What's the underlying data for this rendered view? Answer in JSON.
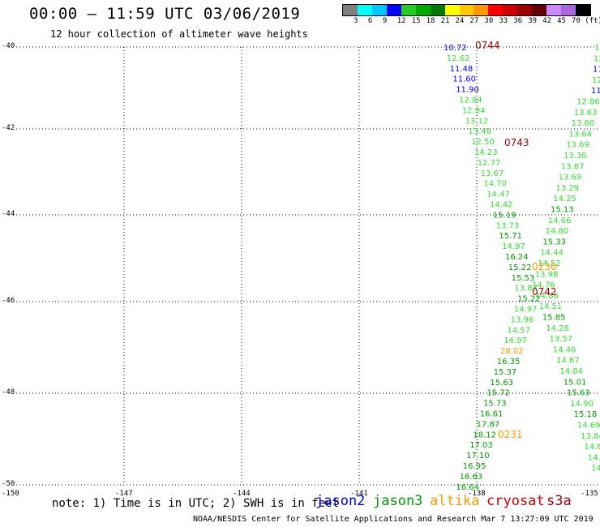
{
  "title": "00:00 – 11:59 UTC 03/06/2019",
  "subtitle": "12 hour collection of altimeter wave heights",
  "colorbar": {
    "colors": [
      "#808080",
      "#00ffff",
      "#00c8ff",
      "#0000ff",
      "#22cc22",
      "#00aa00",
      "#007700",
      "#ffff00",
      "#ffc800",
      "#ff9900",
      "#ff0000",
      "#cc0000",
      "#990000",
      "#660000",
      "#cc88ff",
      "#aa66dd",
      "#000000"
    ],
    "labels": [
      "3",
      "6",
      "9",
      "12",
      "15",
      "18",
      "21",
      "24",
      "27",
      "30",
      "33",
      "36",
      "39",
      "42",
      "45",
      "70 (ft)"
    ]
  },
  "axes": {
    "lat_labels": [
      "-40",
      "-42",
      "-44",
      "-46",
      "-48",
      "-50"
    ],
    "lon_labels": [
      "-150",
      "-147",
      "-144",
      "-141",
      "-138",
      "-135"
    ]
  },
  "annotations": [
    {
      "text": "0744",
      "color": "#990000"
    },
    {
      "text": "0743",
      "color": "#990000"
    },
    {
      "text": "0230",
      "color": "#ff9900"
    },
    {
      "text": "0742",
      "color": "#990000"
    },
    {
      "text": "0231",
      "color": "#ff9900"
    }
  ],
  "track_left": [
    {
      "v": "10.72",
      "c": "#0000ff"
    },
    {
      "v": "12.62",
      "c": "#33dd33"
    },
    {
      "v": "11.48",
      "c": "#0000ff"
    },
    {
      "v": "11.60",
      "c": "#0000ff"
    },
    {
      "v": "11.90",
      "c": "#0000ff"
    },
    {
      "v": "12.84",
      "c": "#33dd33"
    },
    {
      "v": "12.94",
      "c": "#33dd33"
    },
    {
      "v": "13.12",
      "c": "#33dd33"
    },
    {
      "v": "13.48",
      "c": "#33dd33"
    },
    {
      "v": "12.50",
      "c": "#33dd33"
    },
    {
      "v": "14.23",
      "c": "#33dd33"
    },
    {
      "v": "12.77",
      "c": "#33dd33"
    },
    {
      "v": "13.67",
      "c": "#33dd33"
    },
    {
      "v": "14.70",
      "c": "#33dd33"
    },
    {
      "v": "14.47",
      "c": "#33dd33"
    },
    {
      "v": "14.42",
      "c": "#33dd33"
    },
    {
      "v": "15.19",
      "c": "#009900"
    },
    {
      "v": "13.73",
      "c": "#33dd33"
    },
    {
      "v": "15.71",
      "c": "#009900"
    },
    {
      "v": "14.97",
      "c": "#33dd33"
    },
    {
      "v": "16.24",
      "c": "#009900"
    },
    {
      "v": "15.22",
      "c": "#009900"
    },
    {
      "v": "15.53",
      "c": "#009900"
    },
    {
      "v": "13.87",
      "c": "#33dd33"
    },
    {
      "v": "15.22",
      "c": "#009900"
    },
    {
      "v": "14.97",
      "c": "#33dd33"
    },
    {
      "v": "13.96",
      "c": "#33dd33"
    },
    {
      "v": "14.57",
      "c": "#33dd33"
    },
    {
      "v": "14.97",
      "c": "#33dd33"
    },
    {
      "v": "28.02",
      "c": "#ff9900"
    },
    {
      "v": "16.35",
      "c": "#009900"
    },
    {
      "v": "15.37",
      "c": "#009900"
    },
    {
      "v": "15.63",
      "c": "#009900"
    },
    {
      "v": "15.72",
      "c": "#009900"
    },
    {
      "v": "15.73",
      "c": "#009900"
    },
    {
      "v": "16.61",
      "c": "#009900"
    },
    {
      "v": "17.87",
      "c": "#009900"
    },
    {
      "v": "18.12",
      "c": "#009900"
    },
    {
      "v": "17.03",
      "c": "#009900"
    },
    {
      "v": "17.10",
      "c": "#009900"
    },
    {
      "v": "16.95",
      "c": "#009900"
    },
    {
      "v": "16.63",
      "c": "#009900"
    },
    {
      "v": "16.64",
      "c": "#009900"
    }
  ],
  "track_right": [
    {
      "v": "1",
      "c": "#33dd33"
    },
    {
      "v": "12",
      "c": "#33dd33"
    },
    {
      "v": "11.",
      "c": "#0000ff"
    },
    {
      "v": "12.",
      "c": "#33dd33"
    },
    {
      "v": "11.7",
      "c": "#0000ff"
    },
    {
      "v": "12.86",
      "c": "#33dd33"
    },
    {
      "v": "13.63",
      "c": "#33dd33"
    },
    {
      "v": "13.60",
      "c": "#33dd33"
    },
    {
      "v": "13.64",
      "c": "#33dd33"
    },
    {
      "v": "13.69",
      "c": "#33dd33"
    },
    {
      "v": "13.30",
      "c": "#33dd33"
    },
    {
      "v": "13.87",
      "c": "#33dd33"
    },
    {
      "v": "13.69",
      "c": "#33dd33"
    },
    {
      "v": "13.29",
      "c": "#33dd33"
    },
    {
      "v": "14.25",
      "c": "#33dd33"
    },
    {
      "v": "15.13",
      "c": "#009900"
    },
    {
      "v": "14.66",
      "c": "#33dd33"
    },
    {
      "v": "14.80",
      "c": "#33dd33"
    },
    {
      "v": "15.33",
      "c": "#009900"
    },
    {
      "v": "14.44",
      "c": "#33dd33"
    },
    {
      "v": "14.52",
      "c": "#33dd33"
    },
    {
      "v": "13.98",
      "c": "#33dd33"
    },
    {
      "v": "14.76",
      "c": "#33dd33"
    },
    {
      "v": "14.86",
      "c": "#33dd33"
    },
    {
      "v": "14.51",
      "c": "#33dd33"
    },
    {
      "v": "15.85",
      "c": "#009900"
    },
    {
      "v": "14.28",
      "c": "#33dd33"
    },
    {
      "v": "13.57",
      "c": "#33dd33"
    },
    {
      "v": "14.46",
      "c": "#33dd33"
    },
    {
      "v": "14.67",
      "c": "#33dd33"
    },
    {
      "v": "14.84",
      "c": "#33dd33"
    },
    {
      "v": "15.01",
      "c": "#009900"
    },
    {
      "v": "15.63",
      "c": "#009900"
    },
    {
      "v": "14.90",
      "c": "#33dd33"
    },
    {
      "v": "15.18",
      "c": "#009900"
    },
    {
      "v": "14.69",
      "c": "#33dd33"
    },
    {
      "v": "13.84",
      "c": "#33dd33"
    },
    {
      "v": "14.6",
      "c": "#33dd33"
    },
    {
      "v": "14.2",
      "c": "#33dd33"
    },
    {
      "v": "14.",
      "c": "#33dd33"
    }
  ],
  "note": "note: 1) Time is in UTC; 2) SWH is in feet",
  "legend": [
    {
      "name": "jason2",
      "color": "#0000cc"
    },
    {
      "name": "jason3",
      "color": "#009900"
    },
    {
      "name": "altika",
      "color": "#ff9900"
    },
    {
      "name": "cryosat",
      "color": "#cc0000"
    },
    {
      "name": "s3a",
      "color": "#990000"
    }
  ],
  "footer": "NOAA/NESDIS Center for Satellite Applications and Research   Mar  7 13:27:09 UTC 2019"
}
